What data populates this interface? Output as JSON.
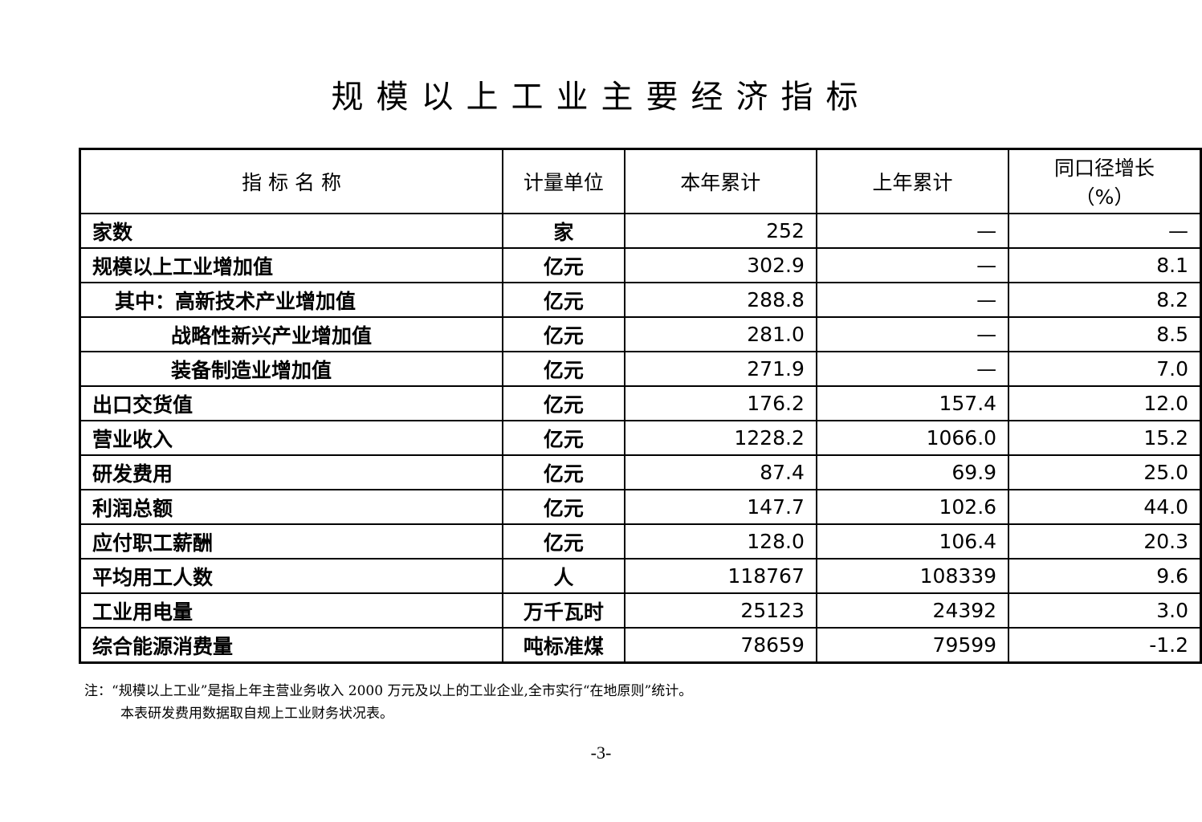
{
  "title": "规模以上工业主要经济指标",
  "table": {
    "headers": [
      "指 标 名 称",
      "计量单位",
      "本年累计",
      "上年累计",
      "同口径增长\n（%）"
    ],
    "header_growth_line1": "同口径增长",
    "header_growth_line2": "（%）",
    "rows": [
      {
        "name": "家数",
        "unit": "家",
        "current": "252",
        "previous": "—",
        "growth": "—",
        "indent": 0
      },
      {
        "name": "规模以上工业增加值",
        "unit": "亿元",
        "current": "302.9",
        "previous": "—",
        "growth": "8.1",
        "indent": 0
      },
      {
        "name": "其中：高新技术产业增加值",
        "unit": "亿元",
        "current": "288.8",
        "previous": "—",
        "growth": "8.2",
        "indent": 1
      },
      {
        "name": "战略性新兴产业增加值",
        "unit": "亿元",
        "current": "281.0",
        "previous": "—",
        "growth": "8.5",
        "indent": 2
      },
      {
        "name": "装备制造业增加值",
        "unit": "亿元",
        "current": "271.9",
        "previous": "—",
        "growth": "7.0",
        "indent": 2
      },
      {
        "name": "出口交货值",
        "unit": "亿元",
        "current": "176.2",
        "previous": "157.4",
        "growth": "12.0",
        "indent": 0
      },
      {
        "name": "营业收入",
        "unit": "亿元",
        "current": "1228.2",
        "previous": "1066.0",
        "growth": "15.2",
        "indent": 0
      },
      {
        "name": "研发费用",
        "unit": "亿元",
        "current": "87.4",
        "previous": "69.9",
        "growth": "25.0",
        "indent": 0
      },
      {
        "name": "利润总额",
        "unit": "亿元",
        "current": "147.7",
        "previous": "102.6",
        "growth": "44.0",
        "indent": 0
      },
      {
        "name": "应付职工薪酬",
        "unit": "亿元",
        "current": "128.0",
        "previous": "106.4",
        "growth": "20.3",
        "indent": 0
      },
      {
        "name": "平均用工人数",
        "unit": "人",
        "current": "118767",
        "previous": "108339",
        "growth": "9.6",
        "indent": 0
      },
      {
        "name": "工业用电量",
        "unit": "万千瓦时",
        "current": "25123",
        "previous": "24392",
        "growth": "3.0",
        "indent": 0
      },
      {
        "name": "综合能源消费量",
        "unit": "吨标准煤",
        "current": "78659",
        "previous": "79599",
        "growth": "-1.2",
        "indent": 0
      }
    ]
  },
  "notes": [
    "注：“规模以上工业”是指上年主营业务收入 2000 万元及以上的工业企业,全市实行“在地原则”统计。",
    "本表研发费用数据取自规上工业财务状况表。"
  ],
  "page_number": "-3-"
}
